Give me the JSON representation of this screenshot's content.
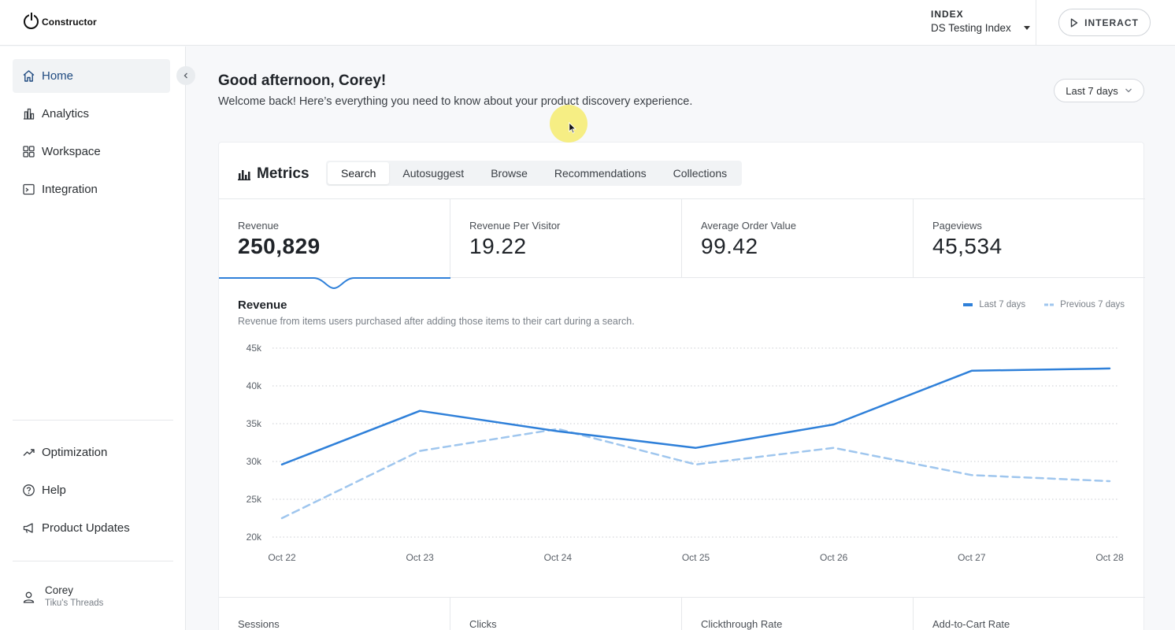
{
  "app": {
    "logo_text": "Constructor"
  },
  "header": {
    "index_label": "INDEX",
    "index_value": "DS Testing Index",
    "interact_label": "INTERACT"
  },
  "sidebar": {
    "top_items": [
      {
        "label": "Home",
        "icon": "home-icon",
        "active": true
      },
      {
        "label": "Analytics",
        "icon": "analytics-icon"
      },
      {
        "label": "Workspace",
        "icon": "workspace-icon"
      },
      {
        "label": "Integration",
        "icon": "integration-icon"
      }
    ],
    "bottom_items": [
      {
        "label": "Optimization",
        "icon": "trend-icon"
      },
      {
        "label": "Help",
        "icon": "help-icon"
      },
      {
        "label": "Product Updates",
        "icon": "megaphone-icon"
      }
    ],
    "user": {
      "name": "Corey",
      "org": "Tiku's Threads"
    }
  },
  "main": {
    "greeting": "Good afternoon, Corey!",
    "welcome": "Welcome back! Here’s everything you need to know about your product discovery experience.",
    "date_range": "Last 7 days"
  },
  "metrics": {
    "title": "Metrics",
    "tabs": [
      "Search",
      "Autosuggest",
      "Browse",
      "Recommendations",
      "Collections"
    ],
    "active_tab": "Search",
    "kpis": [
      {
        "label": "Revenue",
        "value": "250,829"
      },
      {
        "label": "Revenue Per Visitor",
        "value": "19.22"
      },
      {
        "label": "Average Order Value",
        "value": "99.42"
      },
      {
        "label": "Pageviews",
        "value": "45,534"
      }
    ],
    "kpis_secondary": [
      "Sessions",
      "Clicks",
      "Clickthrough Rate",
      "Add-to-Cart Rate"
    ]
  },
  "chart_data": {
    "type": "line",
    "title": "Revenue",
    "subtitle": "Revenue from items users purchased after adding those items to their cart during a search.",
    "categories": [
      "Oct 22",
      "Oct 23",
      "Oct 24",
      "Oct 25",
      "Oct 26",
      "Oct 27",
      "Oct 28"
    ],
    "y_ticks": [
      "45k",
      "40k",
      "35k",
      "30k",
      "25k",
      "20k"
    ],
    "ylim": [
      20000,
      45000
    ],
    "grid": true,
    "legend_position": "top-right",
    "series": [
      {
        "name": "Last 7 days",
        "style": "solid",
        "color": "#2f80d9",
        "values": [
          29600,
          36700,
          34000,
          31800,
          34900,
          42000,
          42300
        ]
      },
      {
        "name": "Previous 7 days",
        "style": "dashed",
        "color": "#9fc6ee",
        "values": [
          22500,
          31400,
          34300,
          29600,
          31800,
          28200,
          27400
        ]
      }
    ]
  },
  "colors": {
    "accent": "#2f80d9",
    "accent_light": "#9fc6ee",
    "nav_active": "#1f4a80"
  }
}
